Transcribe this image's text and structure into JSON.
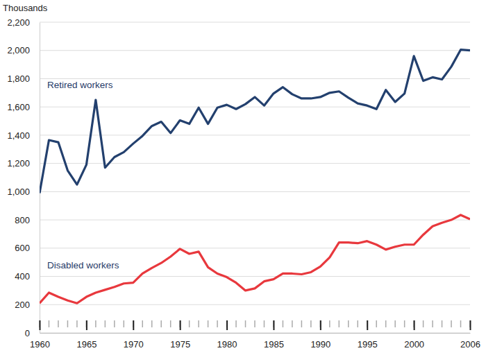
{
  "chart_data": {
    "type": "line",
    "y_label": "Thousands",
    "x": [
      1960,
      1961,
      1962,
      1963,
      1964,
      1965,
      1966,
      1967,
      1968,
      1969,
      1970,
      1971,
      1972,
      1973,
      1974,
      1975,
      1976,
      1977,
      1978,
      1979,
      1980,
      1981,
      1982,
      1983,
      1984,
      1985,
      1986,
      1987,
      1988,
      1989,
      1990,
      1991,
      1992,
      1993,
      1994,
      1995,
      1996,
      1997,
      1998,
      1999,
      2000,
      2001,
      2002,
      2003,
      2004,
      2005,
      2006
    ],
    "series": [
      {
        "name": "Retired workers",
        "color": "#23406e",
        "values": [
          990,
          1365,
          1350,
          1150,
          1050,
          1190,
          1650,
          1170,
          1245,
          1280,
          1340,
          1395,
          1465,
          1495,
          1415,
          1505,
          1480,
          1595,
          1480,
          1595,
          1615,
          1585,
          1620,
          1670,
          1610,
          1695,
          1740,
          1690,
          1660,
          1660,
          1670,
          1700,
          1710,
          1665,
          1625,
          1610,
          1585,
          1720,
          1635,
          1695,
          1960,
          1785,
          1810,
          1795,
          1885,
          2005,
          2000
        ]
      },
      {
        "name": "Disabled workers",
        "color": "#e8383d",
        "values": [
          210,
          285,
          255,
          230,
          210,
          255,
          285,
          305,
          325,
          350,
          355,
          420,
          460,
          495,
          540,
          595,
          560,
          575,
          465,
          420,
          395,
          355,
          300,
          315,
          365,
          380,
          420,
          420,
          415,
          430,
          470,
          535,
          640,
          640,
          635,
          650,
          625,
          590,
          610,
          625,
          625,
          695,
          755,
          780,
          800,
          835,
          805
        ]
      }
    ],
    "xlim": [
      1960,
      2006
    ],
    "xticks": [
      1960,
      1965,
      1970,
      1975,
      1980,
      1985,
      1990,
      1995,
      2000,
      2006
    ],
    "ylim": [
      0,
      2200
    ],
    "yticks": [
      0,
      200,
      400,
      600,
      800,
      {
        "value": 1000,
        "label": "1,000"
      },
      {
        "value": 1200,
        "label": "1,200"
      },
      {
        "value": 1400,
        "label": "1,400"
      },
      {
        "value": 1600,
        "label": "1,600"
      },
      {
        "value": 1800,
        "label": "1,800"
      },
      {
        "value": 2000,
        "label": "2,000"
      },
      {
        "value": 2200,
        "label": "2,200"
      }
    ],
    "grid": true
  }
}
